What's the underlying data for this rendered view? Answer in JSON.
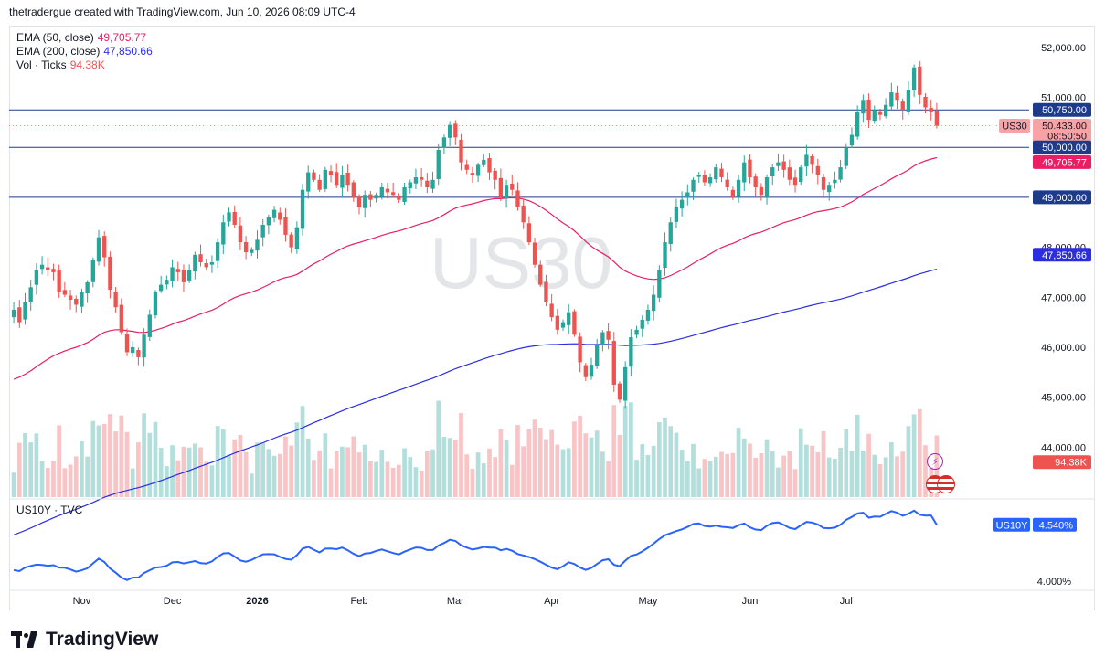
{
  "header": {
    "caption": "thetradergue created with TradingView.com, Jun 10, 2026 08:09 UTC-4"
  },
  "legend": {
    "ema50_label": "EMA (50, close)",
    "ema50_value": "49,705.77",
    "ema200_label": "EMA (200, close)",
    "ema200_value": "47,850.66",
    "vol_label": "Vol · Ticks",
    "vol_value": "94.38K"
  },
  "sub_pane": {
    "label": "US10Y · TVC",
    "symbol_tag": "US10Y",
    "value_tag": "4.540%",
    "tick_label": "4.000%"
  },
  "watermark": "US30",
  "logo_text": "TradingView",
  "colors": {
    "up": "#26a69a",
    "down": "#ef5350",
    "ema50": "#e91e63",
    "ema200": "#2a2ee0",
    "yield_line": "#2962ff",
    "hline": "#1e3a8a"
  },
  "chart_data": [
    {
      "type": "candlestick",
      "symbol": "US30",
      "x_labels": [
        "Nov",
        "Dec",
        "2026",
        "Feb",
        "Mar",
        "Apr",
        "May",
        "Jun",
        "Jul"
      ],
      "x_label_positions": [
        12,
        28,
        43,
        61,
        78,
        95,
        112,
        130,
        147
      ],
      "y_ticks": [
        44000,
        45000,
        46000,
        47000,
        48000,
        49000,
        50000,
        51000,
        52000
      ],
      "ylim": [
        43000,
        52400
      ],
      "closes": [
        46750,
        46500,
        46900,
        47200,
        47550,
        47650,
        47550,
        47500,
        47100,
        47050,
        46950,
        46850,
        47100,
        47300,
        47750,
        48200,
        47800,
        47150,
        46800,
        46300,
        45900,
        46000,
        45800,
        46250,
        46650,
        47100,
        47250,
        47350,
        47600,
        47500,
        47300,
        47550,
        47850,
        47700,
        47600,
        47700,
        48100,
        48500,
        48700,
        48450,
        48100,
        47900,
        47950,
        48150,
        48450,
        48600,
        48750,
        48550,
        48250,
        48000,
        48400,
        49150,
        49500,
        49350,
        49150,
        49550,
        49450,
        49250,
        49450,
        49250,
        49000,
        48800,
        49050,
        48950,
        49050,
        49200,
        49100,
        49050,
        48950,
        49200,
        49300,
        49400,
        49350,
        49200,
        49350,
        49950,
        50200,
        50450,
        50200,
        49700,
        49550,
        49450,
        49650,
        49750,
        49500,
        49350,
        49000,
        49250,
        49150,
        48800,
        48500,
        48100,
        47650,
        47250,
        46900,
        46600,
        46350,
        46500,
        46700,
        46250,
        45700,
        45400,
        45650,
        46050,
        46300,
        46150,
        45250,
        44950,
        45600,
        46200,
        46350,
        46550,
        46750,
        47050,
        47550,
        48100,
        48500,
        48800,
        48950,
        49100,
        49350,
        49450,
        49300,
        49400,
        49600,
        49400,
        49200,
        49000,
        49350,
        49700,
        49400,
        49200,
        49050,
        49400,
        49600,
        49700,
        49550,
        49350,
        49250,
        49600,
        49850,
        49650,
        49450,
        49150,
        49250,
        49350,
        49600,
        50000,
        50250,
        50700,
        50950,
        50550,
        50750,
        50650,
        50850,
        51100,
        50950,
        50750,
        51150,
        51600,
        51050,
        50800,
        50700,
        50433
      ],
      "ema50_last": 49705.77,
      "ema200_last": 47850.66,
      "horizontal_levels": [
        50750,
        50000,
        49000
      ],
      "price_tags": [
        {
          "label": "50,750.00",
          "value": 50750,
          "bg": "#1e3a8a"
        },
        {
          "label": "50,433.00",
          "value": 50433,
          "bg": "#f7a3a6",
          "dark": true
        },
        {
          "label": "08:50:50",
          "value": 50230,
          "bg": "#f7a3a6",
          "dark": true
        },
        {
          "label": "50,000.00",
          "value": 50000,
          "bg": "#1e3a8a"
        },
        {
          "label": "49,705.77",
          "value": 49705.77,
          "bg": "#e91e63"
        },
        {
          "label": "49,000.00",
          "value": 49000,
          "bg": "#1e3a8a"
        },
        {
          "label": "47,850.66",
          "value": 47850.66,
          "bg": "#2a2ee0"
        },
        {
          "label": "94.38K",
          "value": 43700,
          "bg": "#ef5350"
        }
      ],
      "symbol_tag": "US30"
    },
    {
      "type": "line",
      "symbol": "US10Y",
      "last": 4.54,
      "tick": 4.0
    }
  ]
}
